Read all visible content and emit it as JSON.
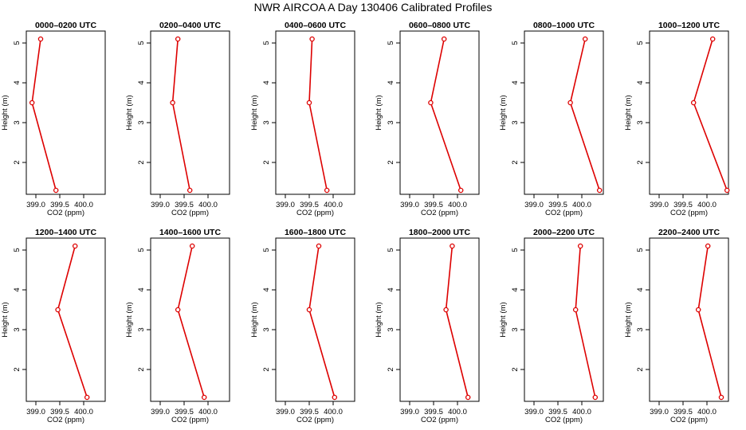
{
  "title": "NWR AIRCOA A   Day 130406  Calibrated Profiles",
  "colors": {
    "series": "#dd0000",
    "axis": "#000000"
  },
  "chart_data": [
    {
      "type": "line",
      "title": "0000–0200 UTC",
      "xlabel": "CO2 (ppm)",
      "ylabel": "Height (m)",
      "xlim": [
        398.8,
        400.45
      ],
      "ylim": [
        1.2,
        5.3
      ],
      "xticks": [
        399.0,
        399.5,
        400.0
      ],
      "xtick_labels": [
        "399.0",
        "399.5",
        "400.0"
      ],
      "yticks": [
        2,
        3,
        4,
        5
      ],
      "ytick_labels": [
        "2",
        "3",
        "4",
        "5"
      ],
      "x": [
        399.42,
        398.92,
        399.1
      ],
      "y": [
        1.3,
        3.5,
        5.1
      ]
    },
    {
      "type": "line",
      "title": "0200–0400 UTC",
      "xlabel": "CO2 (ppm)",
      "ylabel": "Height (m)",
      "xlim": [
        398.8,
        400.45
      ],
      "ylim": [
        1.2,
        5.3
      ],
      "xticks": [
        399.0,
        399.5,
        400.0
      ],
      "xtick_labels": [
        "399.0",
        "399.5",
        "400.0"
      ],
      "yticks": [
        2,
        3,
        4,
        5
      ],
      "ytick_labels": [
        "2",
        "3",
        "4",
        "5"
      ],
      "x": [
        399.62,
        399.26,
        399.37
      ],
      "y": [
        1.3,
        3.5,
        5.1
      ]
    },
    {
      "type": "line",
      "title": "0400–0600 UTC",
      "xlabel": "CO2 (ppm)",
      "ylabel": "Height (m)",
      "xlim": [
        398.8,
        400.45
      ],
      "ylim": [
        1.2,
        5.3
      ],
      "xticks": [
        399.0,
        399.5,
        400.0
      ],
      "xtick_labels": [
        "399.0",
        "399.5",
        "400.0"
      ],
      "yticks": [
        2,
        3,
        4,
        5
      ],
      "ytick_labels": [
        "2",
        "3",
        "4",
        "5"
      ],
      "x": [
        399.87,
        399.5,
        399.56
      ],
      "y": [
        1.3,
        3.5,
        5.1
      ]
    },
    {
      "type": "line",
      "title": "0600–0800 UTC",
      "xlabel": "CO2 (ppm)",
      "ylabel": "Height (m)",
      "xlim": [
        398.8,
        400.45
      ],
      "ylim": [
        1.2,
        5.3
      ],
      "xticks": [
        399.0,
        399.5,
        400.0
      ],
      "xtick_labels": [
        "399.0",
        "399.5",
        "400.0"
      ],
      "yticks": [
        2,
        3,
        4,
        5
      ],
      "ytick_labels": [
        "2",
        "3",
        "4",
        "5"
      ],
      "x": [
        400.07,
        399.44,
        399.72
      ],
      "y": [
        1.3,
        3.5,
        5.1
      ]
    },
    {
      "type": "line",
      "title": "0800–1000 UTC",
      "xlabel": "CO2 (ppm)",
      "ylabel": "Height (m)",
      "xlim": [
        398.8,
        400.45
      ],
      "ylim": [
        1.2,
        5.3
      ],
      "xticks": [
        399.0,
        399.5,
        400.0
      ],
      "xtick_labels": [
        "399.0",
        "399.5",
        "400.0"
      ],
      "yticks": [
        2,
        3,
        4,
        5
      ],
      "ytick_labels": [
        "2",
        "3",
        "4",
        "5"
      ],
      "x": [
        400.37,
        399.76,
        400.07
      ],
      "y": [
        1.3,
        3.5,
        5.1
      ]
    },
    {
      "type": "line",
      "title": "1000–1200 UTC",
      "xlabel": "CO2 (ppm)",
      "ylabel": "Height (m)",
      "xlim": [
        398.8,
        400.45
      ],
      "ylim": [
        1.2,
        5.3
      ],
      "xticks": [
        399.0,
        399.5,
        400.0
      ],
      "xtick_labels": [
        "399.0",
        "399.5",
        "400.0"
      ],
      "yticks": [
        2,
        3,
        4,
        5
      ],
      "ytick_labels": [
        "2",
        "3",
        "4",
        "5"
      ],
      "x": [
        400.42,
        399.72,
        400.12
      ],
      "y": [
        1.3,
        3.5,
        5.1
      ]
    },
    {
      "type": "line",
      "title": "1200–1400 UTC",
      "xlabel": "CO2 (ppm)",
      "ylabel": "Height (m)",
      "xlim": [
        398.8,
        400.45
      ],
      "ylim": [
        1.2,
        5.3
      ],
      "xticks": [
        399.0,
        399.5,
        400.0
      ],
      "xtick_labels": [
        "399.0",
        "399.5",
        "400.0"
      ],
      "yticks": [
        2,
        3,
        4,
        5
      ],
      "ytick_labels": [
        "2",
        "3",
        "4",
        "5"
      ],
      "x": [
        400.07,
        399.46,
        399.82
      ],
      "y": [
        1.3,
        3.5,
        5.1
      ]
    },
    {
      "type": "line",
      "title": "1400–1600 UTC",
      "xlabel": "CO2 (ppm)",
      "ylabel": "Height (m)",
      "xlim": [
        398.8,
        400.45
      ],
      "ylim": [
        1.2,
        5.3
      ],
      "xticks": [
        399.0,
        399.5,
        400.0
      ],
      "xtick_labels": [
        "399.0",
        "399.5",
        "400.0"
      ],
      "yticks": [
        2,
        3,
        4,
        5
      ],
      "ytick_labels": [
        "2",
        "3",
        "4",
        "5"
      ],
      "x": [
        399.92,
        399.37,
        399.67
      ],
      "y": [
        1.3,
        3.5,
        5.1
      ]
    },
    {
      "type": "line",
      "title": "1600–1800 UTC",
      "xlabel": "CO2 (ppm)",
      "ylabel": "Height (m)",
      "xlim": [
        398.8,
        400.45
      ],
      "ylim": [
        1.2,
        5.3
      ],
      "xticks": [
        399.0,
        399.5,
        400.0
      ],
      "xtick_labels": [
        "399.0",
        "399.5",
        "400.0"
      ],
      "yticks": [
        2,
        3,
        4,
        5
      ],
      "ytick_labels": [
        "2",
        "3",
        "4",
        "5"
      ],
      "x": [
        400.03,
        399.5,
        399.7
      ],
      "y": [
        1.3,
        3.5,
        5.1
      ]
    },
    {
      "type": "line",
      "title": "1800–2000 UTC",
      "xlabel": "CO2 (ppm)",
      "ylabel": "Height (m)",
      "xlim": [
        398.8,
        400.45
      ],
      "ylim": [
        1.2,
        5.3
      ],
      "xticks": [
        399.0,
        399.5,
        400.0
      ],
      "xtick_labels": [
        "399.0",
        "399.5",
        "400.0"
      ],
      "yticks": [
        2,
        3,
        4,
        5
      ],
      "ytick_labels": [
        "2",
        "3",
        "4",
        "5"
      ],
      "x": [
        400.22,
        399.76,
        399.89
      ],
      "y": [
        1.3,
        3.5,
        5.1
      ]
    },
    {
      "type": "line",
      "title": "2000–2200 UTC",
      "xlabel": "CO2 (ppm)",
      "ylabel": "Height (m)",
      "xlim": [
        398.8,
        400.45
      ],
      "ylim": [
        1.2,
        5.3
      ],
      "xticks": [
        399.0,
        399.5,
        400.0
      ],
      "xtick_labels": [
        "399.0",
        "399.5",
        "400.0"
      ],
      "yticks": [
        2,
        3,
        4,
        5
      ],
      "ytick_labels": [
        "2",
        "3",
        "4",
        "5"
      ],
      "x": [
        400.28,
        399.87,
        399.97
      ],
      "y": [
        1.3,
        3.5,
        5.1
      ]
    },
    {
      "type": "line",
      "title": "2200–2400 UTC",
      "xlabel": "CO2 (ppm)",
      "ylabel": "Height (m)",
      "xlim": [
        398.8,
        400.45
      ],
      "ylim": [
        1.2,
        5.3
      ],
      "xticks": [
        399.0,
        399.5,
        400.0
      ],
      "xtick_labels": [
        "399.0",
        "399.5",
        "400.0"
      ],
      "yticks": [
        2,
        3,
        4,
        5
      ],
      "ytick_labels": [
        "2",
        "3",
        "4",
        "5"
      ],
      "x": [
        400.3,
        399.82,
        400.02
      ],
      "y": [
        1.3,
        3.5,
        5.1
      ]
    }
  ]
}
